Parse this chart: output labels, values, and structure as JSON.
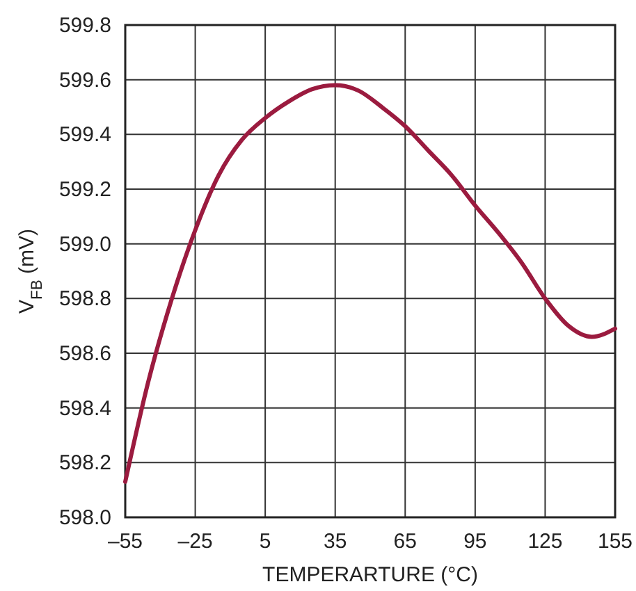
{
  "chart_data": {
    "type": "line",
    "xlabel": "TEMPERARTURE (°C)",
    "ylabel": "V$_{FB}$ (mV)",
    "x": [
      -55,
      -45,
      -35,
      -25,
      -15,
      -5,
      5,
      15,
      25,
      35,
      45,
      55,
      65,
      75,
      85,
      95,
      105,
      115,
      125,
      135,
      145,
      155
    ],
    "series": [
      {
        "color": "#9b1b3f",
        "values": [
          598.13,
          598.5,
          598.8,
          599.05,
          599.25,
          599.38,
          599.46,
          599.52,
          599.565,
          599.58,
          599.56,
          599.5,
          599.43,
          599.34,
          599.25,
          599.14,
          599.04,
          598.93,
          598.8,
          598.7,
          598.66,
          598.69
        ]
      }
    ],
    "xlim": [
      -55,
      155
    ],
    "xticks": [
      {
        "value": -55,
        "label": "–55"
      },
      {
        "value": -25,
        "label": "–25"
      },
      5,
      35,
      65,
      95,
      125,
      155
    ],
    "ylim": [
      598.0,
      599.8
    ],
    "yticks": [
      {
        "value": 598.0,
        "label": "598.0"
      },
      598.2,
      598.4,
      598.6,
      598.8,
      {
        "value": 599.0,
        "label": "599.0"
      },
      599.2,
      599.4,
      599.6,
      599.8
    ],
    "grid": true,
    "marker": "none",
    "line_style": "solid"
  }
}
